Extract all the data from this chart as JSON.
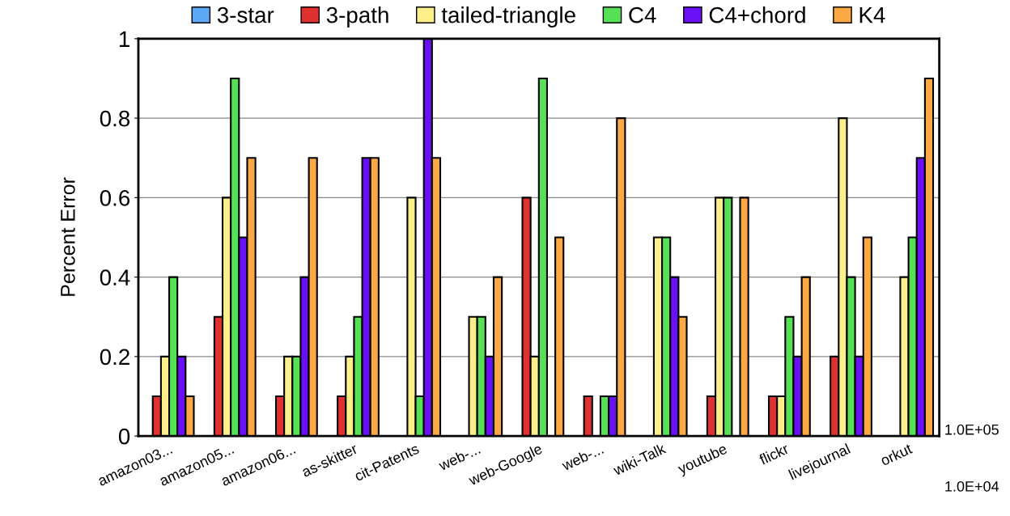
{
  "chart_data": {
    "type": "bar",
    "ylabel": "Percent Error",
    "categories": [
      "amazon03...",
      "amazon05...",
      "amazon06...",
      "as-skitter",
      "cit-Patents",
      "web-...",
      "web-Google",
      "web-...",
      "wiki-Talk",
      "youtube",
      "flickr",
      "livejournal",
      "orkut"
    ],
    "series": [
      {
        "name": "3-star",
        "color": "#5ba8f5",
        "values": [
          0,
          0,
          0,
          0,
          0,
          0,
          0,
          0,
          0,
          0,
          0,
          0,
          0
        ]
      },
      {
        "name": "3-path",
        "color": "#e03030",
        "values": [
          0.1,
          0.3,
          0.1,
          0.1,
          0,
          0,
          0.6,
          0.1,
          0,
          0.1,
          0.1,
          0.2,
          0
        ]
      },
      {
        "name": "tailed-triangle",
        "color": "#fdf08a",
        "values": [
          0.2,
          0.6,
          0.2,
          0.2,
          0.6,
          0.3,
          0.2,
          0,
          0.5,
          0.6,
          0.1,
          0.8,
          0.4
        ]
      },
      {
        "name": "C4",
        "color": "#55e055",
        "values": [
          0.4,
          0.9,
          0.2,
          0.3,
          0.1,
          0.3,
          0.9,
          0.1,
          0.5,
          0.6,
          0.3,
          0.4,
          0.5
        ]
      },
      {
        "name": "C4+chord",
        "color": "#6a10f5",
        "values": [
          0.2,
          0.5,
          0.4,
          0.7,
          1.0,
          0.2,
          0,
          0.1,
          0.4,
          0,
          0.2,
          0.2,
          0.7
        ]
      },
      {
        "name": "K4",
        "color": "#fba845",
        "values": [
          0.1,
          0.7,
          0.7,
          0.7,
          0.7,
          0.4,
          0.5,
          0.8,
          0.3,
          0.6,
          0.4,
          0.5,
          0.9
        ]
      }
    ],
    "ylim": [
      0,
      1
    ],
    "yticks": [
      0,
      0.2,
      0.4,
      0.6,
      0.8,
      1
    ],
    "grid": "y",
    "legend": "top",
    "annotations": [
      "1.0E+05",
      "1.0E+04"
    ]
  }
}
